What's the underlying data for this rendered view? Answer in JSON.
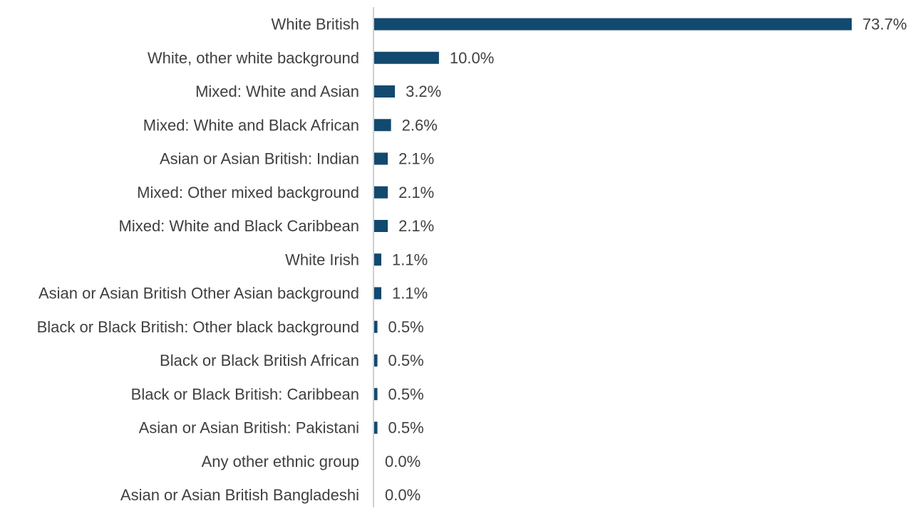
{
  "chart_data": {
    "type": "bar",
    "orientation": "horizontal",
    "title": "",
    "xlabel": "",
    "ylabel": "",
    "xlim": [
      0,
      73.7
    ],
    "grid": false,
    "legend": "none",
    "bar_color": "#12496f",
    "axis_color": "#bfbfbf",
    "text_color": "#404040",
    "categories": [
      "White British",
      "White, other white background",
      "Mixed: White and Asian",
      "Mixed: White and Black African",
      "Asian or Asian British: Indian",
      "Mixed: Other mixed background",
      "Mixed: White and Black Caribbean",
      "White Irish",
      "Asian or Asian British Other Asian background",
      "Black or Black British: Other black background",
      "Black or Black British African",
      "Black or Black British: Caribbean",
      "Asian or Asian British: Pakistani",
      "Any other ethnic group",
      "Asian or Asian British Bangladeshi"
    ],
    "values": [
      73.7,
      10.0,
      3.2,
      2.6,
      2.1,
      2.1,
      2.1,
      1.1,
      1.1,
      0.5,
      0.5,
      0.5,
      0.5,
      0.0,
      0.0
    ],
    "data_labels": [
      "73.7%",
      "10.0%",
      "3.2%",
      "2.6%",
      "2.1%",
      "2.1%",
      "2.1%",
      "1.1%",
      "1.1%",
      "0.5%",
      "0.5%",
      "0.5%",
      "0.5%",
      "0.0%",
      "0.0%"
    ]
  }
}
